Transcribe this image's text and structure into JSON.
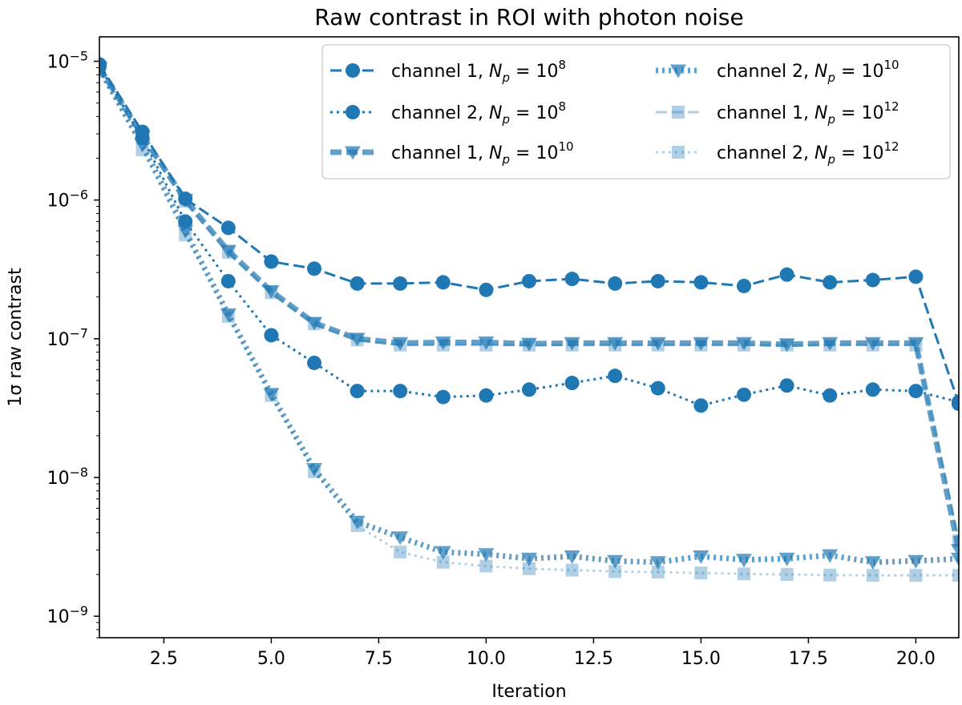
{
  "chart_data": {
    "type": "line",
    "title": "Raw contrast in ROI with photon noise",
    "xlabel": "Iteration",
    "ylabel": "1σ raw contrast",
    "xscale": "linear",
    "yscale": "log",
    "xlim": [
      1,
      21
    ],
    "ylim": [
      7e-10,
      1.5e-05
    ],
    "xticks": [
      2.5,
      5.0,
      7.5,
      10.0,
      12.5,
      15.0,
      17.5,
      20.0
    ],
    "xtick_labels": [
      "2.5",
      "5.0",
      "7.5",
      "10.0",
      "12.5",
      "15.0",
      "17.5",
      "20.0"
    ],
    "yticks": [
      1e-09,
      1e-08,
      1e-07,
      1e-06,
      1e-05
    ],
    "ytick_labels": [
      {
        "base": "10",
        "exp": "−9"
      },
      {
        "base": "10",
        "exp": "−8"
      },
      {
        "base": "10",
        "exp": "−7"
      },
      {
        "base": "10",
        "exp": "−6"
      },
      {
        "base": "10",
        "exp": "−5"
      }
    ],
    "legend_position": "top-right",
    "legend_columns": 2,
    "x": [
      1,
      2,
      3,
      4,
      5,
      6,
      7,
      8,
      9,
      10,
      11,
      12,
      13,
      14,
      15,
      16,
      17,
      18,
      19,
      20,
      21
    ],
    "series": [
      {
        "name": "channel 1, N_p = 10^8",
        "legend": {
          "prefix": "channel 1, ",
          "var": "N",
          "sub": "p",
          "eq": " = ",
          "base": "10",
          "exp": "8"
        },
        "color": "#1f77b4",
        "opacity": 1.0,
        "linestyle": "dashed",
        "marker": "circle",
        "linewidth": 3,
        "values": [
          9.5e-06,
          3.1e-06,
          1.02e-06,
          6.3e-07,
          3.6e-07,
          3.2e-07,
          2.5e-07,
          2.5e-07,
          2.55e-07,
          2.25e-07,
          2.6e-07,
          2.7e-07,
          2.5e-07,
          2.6e-07,
          2.55e-07,
          2.4e-07,
          2.9e-07,
          2.55e-07,
          2.65e-07,
          2.8e-07,
          3.4e-08
        ]
      },
      {
        "name": "channel 2, N_p = 10^8",
        "legend": {
          "prefix": "channel 2, ",
          "var": "N",
          "sub": "p",
          "eq": " = ",
          "base": "10",
          "exp": "8"
        },
        "color": "#1f77b4",
        "opacity": 1.0,
        "linestyle": "dotted",
        "marker": "circle",
        "linewidth": 3,
        "values": [
          9.2e-06,
          2.8e-06,
          7e-07,
          2.6e-07,
          1.06e-07,
          6.7e-08,
          4.2e-08,
          4.2e-08,
          3.8e-08,
          3.9e-08,
          4.3e-08,
          4.8e-08,
          5.4e-08,
          4.4e-08,
          3.3e-08,
          3.95e-08,
          4.6e-08,
          3.9e-08,
          4.3e-08,
          4.2e-08,
          3.5e-08
        ]
      },
      {
        "name": "channel 1, N_p = 10^10",
        "legend": {
          "prefix": "channel 1, ",
          "var": "N",
          "sub": "p",
          "eq": " = ",
          "base": "10",
          "exp": "10"
        },
        "color": "#1f77b4",
        "opacity": 0.7,
        "linestyle": "dashed",
        "marker": "triangle-down",
        "linewidth": 7,
        "values": [
          9e-06,
          2.9e-06,
          1e-06,
          4.3e-07,
          2.2e-07,
          1.3e-07,
          1e-07,
          9.3e-08,
          9.4e-08,
          9.4e-08,
          9.2e-08,
          9.3e-08,
          9.3e-08,
          9.3e-08,
          9.3e-08,
          9.3e-08,
          9.1e-08,
          9.3e-08,
          9.3e-08,
          9.3e-08,
          3e-09
        ]
      },
      {
        "name": "channel 2, N_p = 10^10",
        "legend": {
          "prefix": "channel 2, ",
          "var": "N",
          "sub": "p",
          "eq": " = ",
          "base": "10",
          "exp": "10"
        },
        "color": "#1f77b4",
        "opacity": 0.7,
        "linestyle": "dotted",
        "marker": "triangle-down",
        "linewidth": 7,
        "values": [
          8.8e-06,
          2.5e-06,
          6e-07,
          1.5e-07,
          4e-08,
          1.15e-08,
          4.8e-09,
          3.7e-09,
          2.9e-09,
          2.8e-09,
          2.6e-09,
          2.7e-09,
          2.5e-09,
          2.45e-09,
          2.7e-09,
          2.55e-09,
          2.6e-09,
          2.75e-09,
          2.45e-09,
          2.5e-09,
          2.6e-09
        ]
      },
      {
        "name": "channel 1, N_p = 10^12",
        "legend": {
          "prefix": "channel 1, ",
          "var": "N",
          "sub": "p",
          "eq": " = ",
          "base": "10",
          "exp": "12"
        },
        "color": "#1f77b4",
        "opacity": 0.35,
        "linestyle": "dashed",
        "marker": "square",
        "linewidth": 3,
        "values": [
          8.9e-06,
          2.8e-06,
          9.8e-07,
          4.2e-07,
          2.15e-07,
          1.28e-07,
          9.8e-08,
          9e-08,
          9e-08,
          9e-08,
          9e-08,
          9e-08,
          9e-08,
          9e-08,
          9e-08,
          9e-08,
          9e-08,
          9e-08,
          9e-08,
          9e-08,
          3.5e-09
        ]
      },
      {
        "name": "channel 2, N_p = 10^12",
        "legend": {
          "prefix": "channel 2, ",
          "var": "N",
          "sub": "p",
          "eq": " = ",
          "base": "10",
          "exp": "12"
        },
        "color": "#1f77b4",
        "opacity": 0.35,
        "linestyle": "dotted",
        "marker": "square",
        "linewidth": 3,
        "values": [
          8.7e-06,
          2.3e-06,
          5.6e-07,
          1.45e-07,
          3.9e-08,
          1.1e-08,
          4.5e-09,
          2.9e-09,
          2.45e-09,
          2.3e-09,
          2.2e-09,
          2.15e-09,
          2.1e-09,
          2.08e-09,
          2.05e-09,
          2.02e-09,
          2e-09,
          1.98e-09,
          1.97e-09,
          1.97e-09,
          1.97e-09
        ]
      }
    ]
  }
}
